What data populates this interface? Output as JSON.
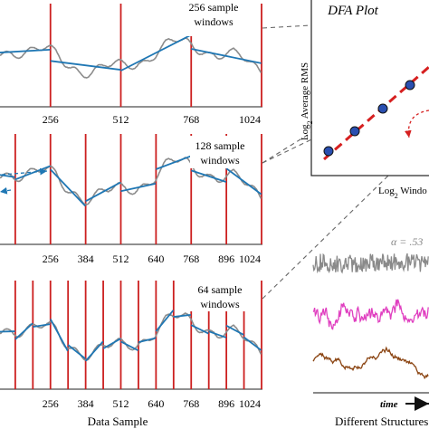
{
  "panels": [
    {
      "window_label_lines": [
        "256 sample",
        "windows"
      ],
      "x_ticks": [
        "256",
        "512",
        "768",
        "1024"
      ],
      "boundaries": [
        0,
        256,
        512,
        768,
        1024
      ]
    },
    {
      "window_label_lines": [
        "128 sample",
        "windows"
      ],
      "x_ticks": [
        "256",
        "384",
        "512",
        "640",
        "768",
        "896",
        "1024"
      ],
      "boundaries": [
        0,
        128,
        256,
        384,
        512,
        640,
        768,
        896,
        1024
      ]
    },
    {
      "window_label_lines": [
        "64 sample",
        "windows"
      ],
      "x_ticks": [
        "256",
        "384",
        "512",
        "640",
        "768",
        "896",
        "1024"
      ],
      "boundaries": [
        0,
        64,
        128,
        192,
        256,
        320,
        384,
        448,
        512,
        576,
        640,
        704,
        768,
        832,
        896,
        960,
        1024
      ]
    }
  ],
  "x_axis_label": "Data Sample",
  "dfa": {
    "title": "DFA Plot",
    "y_label_prefix": "Log",
    "y_label_sub": "2",
    "y_label_rest": " Average RMS",
    "x_label_prefix": "Log",
    "x_label_sub": "2",
    "x_label_rest": " Windo"
  },
  "structures": {
    "alpha_label": "α = .53",
    "series_colors": [
      "#8a8a8a",
      "#e040c0",
      "#8b4513"
    ],
    "time_label": "time",
    "caption": "Different Structures"
  },
  "colors": {
    "signal": "#8c8c8c",
    "trend": "#1f77b4",
    "boundary": "#cc1f1f",
    "dfa_line": "#d62020",
    "dfa_point": "#2a4fb0",
    "connector": "#666666"
  }
}
